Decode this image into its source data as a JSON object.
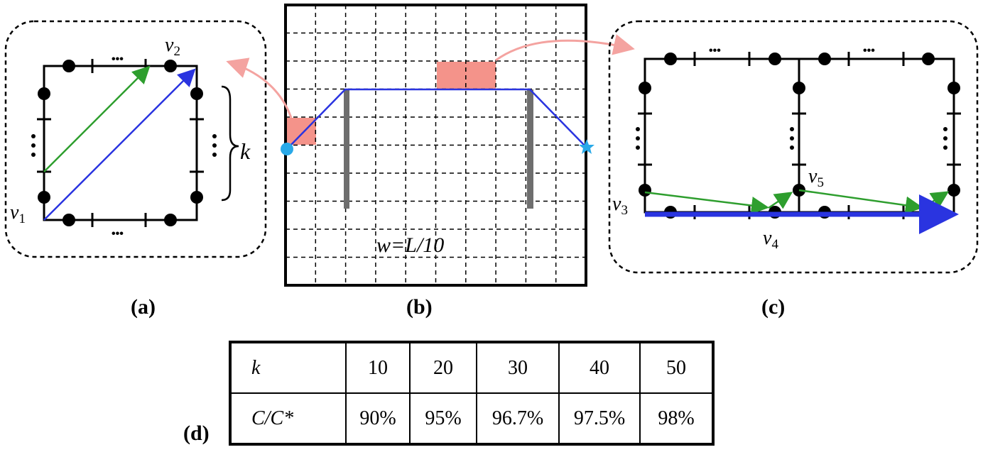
{
  "panels": {
    "a": {
      "label": "(a)",
      "v1": "v1",
      "v2": "v2",
      "k_label": "k",
      "dots": "•••"
    },
    "b": {
      "label": "(b)",
      "width_label": "w=L/10"
    },
    "c": {
      "label": "(c)",
      "v3": "v3",
      "v4": "v4",
      "v5": "v5",
      "dots": "•••"
    },
    "d": {
      "label": "(d)"
    }
  },
  "table": {
    "row_header_1": "k",
    "row_header_2": "C/C*",
    "k_values": [
      "10",
      "20",
      "30",
      "40",
      "50"
    ],
    "ratios": [
      "90%",
      "95%",
      "96.7%",
      "97.5%",
      "98%"
    ]
  },
  "colors": {
    "blue_path": "#2a34e0",
    "green_path": "#2e9e2e",
    "obstacle_fill": "#f4938a",
    "curve_arrow": "#f4a3a0",
    "wall": "#6e6e6e",
    "start_marker": "#29a9e8",
    "goal_marker": "#29a9e8"
  },
  "icons": {
    "start_marker": "circle",
    "goal_marker": "star"
  }
}
